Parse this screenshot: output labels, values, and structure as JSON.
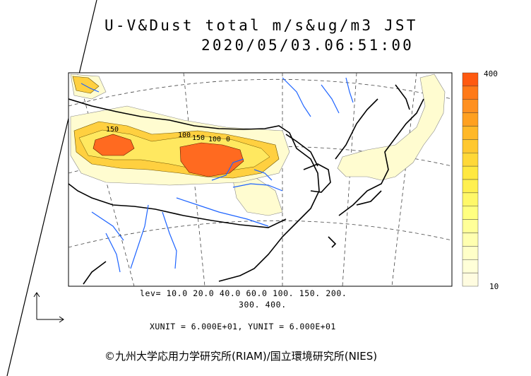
{
  "title": {
    "line1": "U-V&Dust total m/s&ug/m3 JST",
    "line2": "2020/05/03.06:51:00"
  },
  "levels": {
    "line1": "lev= 10.0 20.0 40.0 60.0 100. 150. 200.",
    "line2": "300. 400."
  },
  "units_text": "XUNIT = 6.000E+01, YUNIT = 6.000E+01",
  "copyright": "©九州大学応用力学研究所(RIAM)/国立環境研究所(NIES)",
  "colorbar": {
    "max_label": "400",
    "min_label": "10",
    "colors": [
      "#ff5a10",
      "#ff7a18",
      "#ff9020",
      "#ffa020",
      "#ffb828",
      "#ffc830",
      "#ffd838",
      "#ffe840",
      "#fff050",
      "#fff868",
      "#ffff80",
      "#ffff98",
      "#ffffb0",
      "#ffffc8",
      "#ffffd8",
      "#fffce0"
    ]
  },
  "contour_labels": [
    "150",
    "150",
    "100",
    "100",
    "0"
  ],
  "map": {
    "dust_color_high": "#ff6a20",
    "dust_color_mid": "#ffd040",
    "dust_color_low": "#fffcd0",
    "river_color": "#1e64ff"
  }
}
